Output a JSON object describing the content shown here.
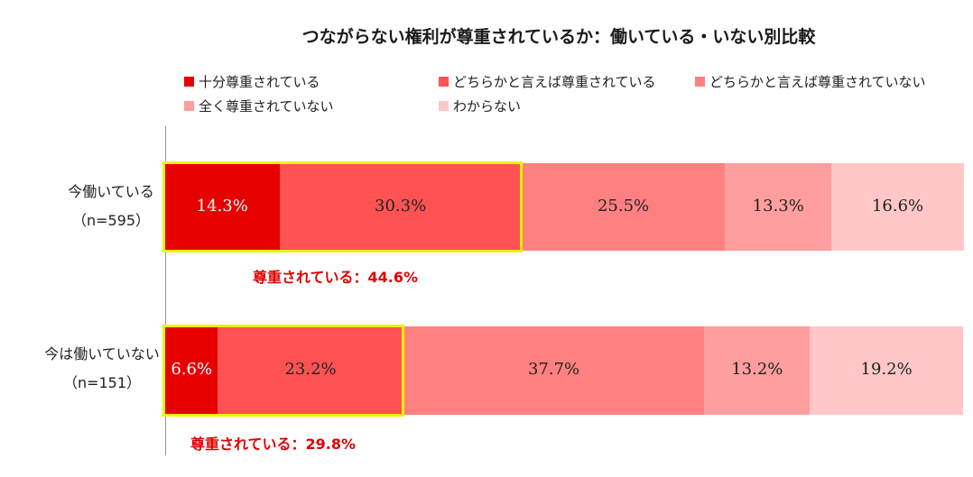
{
  "chart_data": {
    "type": "bar",
    "orientation": "horizontal",
    "stacked": "100%",
    "title": "つながらない権利が尊重されているか：働いている・いない別比較",
    "categories": [
      "今働いている",
      "今は働いていない"
    ],
    "category_sub": [
      "（n=595）",
      "（n=151）"
    ],
    "series": [
      {
        "name": "十分尊重されている",
        "color": "#e60000",
        "values": [
          14.3,
          6.6
        ],
        "labels": [
          "14.3%",
          "6.6%"
        ]
      },
      {
        "name": "どちらかと言えば尊重されている",
        "color": "#ff5252",
        "values": [
          30.3,
          23.2
        ],
        "labels": [
          "30.3%",
          "23.2%"
        ]
      },
      {
        "name": "どちらかと言えば尊重されていない",
        "color": "#ff8080",
        "values": [
          25.5,
          37.7
        ],
        "labels": [
          "25.5%",
          "37.7%"
        ]
      },
      {
        "name": "全く尊重されていない",
        "color": "#ff9e9e",
        "values": [
          13.3,
          13.2
        ],
        "labels": [
          "13.3%",
          "13.2%"
        ]
      },
      {
        "name": "わからない",
        "color": "#ffc7c7",
        "values": [
          16.6,
          19.2
        ],
        "labels": [
          "16.6%",
          "19.2%"
        ]
      }
    ],
    "annotations": [
      "尊重されている：44.6%",
      "尊重されている：29.8%"
    ],
    "highlight_color": "#f2f200",
    "annotation_color": "#e00000",
    "legend_position": "top"
  }
}
